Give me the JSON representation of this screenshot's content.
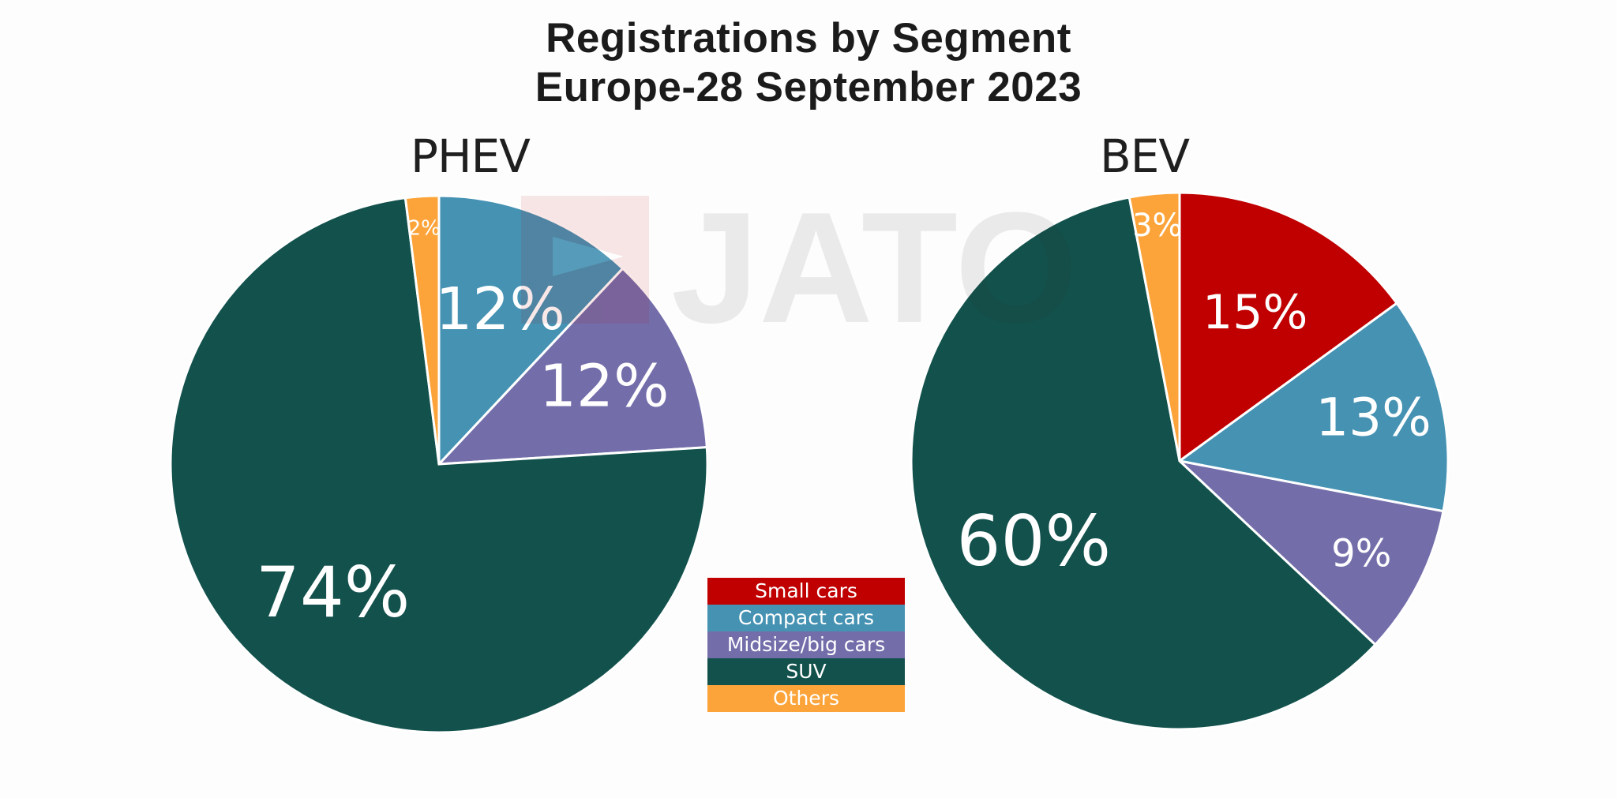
{
  "chart_data": [
    {
      "type": "pie",
      "title": "PHEV",
      "slices": [
        {
          "category": "Small cars",
          "value": 0,
          "label": ""
        },
        {
          "category": "Compact cars",
          "value": 12,
          "label": "12%"
        },
        {
          "category": "Midsize/big cars",
          "value": 12,
          "label": "12%"
        },
        {
          "category": "SUV",
          "value": 74,
          "label": "74%"
        },
        {
          "category": "Others",
          "value": 2,
          "label": "2%"
        }
      ]
    },
    {
      "type": "pie",
      "title": "BEV",
      "slices": [
        {
          "category": "Small cars",
          "value": 15,
          "label": "15%"
        },
        {
          "category": "Compact cars",
          "value": 13,
          "label": "13%"
        },
        {
          "category": "Midsize/big cars",
          "value": 9,
          "label": "9%"
        },
        {
          "category": "SUV",
          "value": 60,
          "label": "60%"
        },
        {
          "category": "Others",
          "value": 3,
          "label": "3%"
        }
      ]
    }
  ],
  "title_line1": "Registrations by Segment",
  "title_line2": "Europe-28 September 2023",
  "watermark": "JATO",
  "legend": [
    {
      "label": "Small cars",
      "color": "#c00000"
    },
    {
      "label": "Compact cars",
      "color": "#4592b3"
    },
    {
      "label": "Midsize/big cars",
      "color": "#736eaa"
    },
    {
      "label": "SUV",
      "color": "#12514c"
    },
    {
      "label": "Others",
      "color": "#fca43a"
    }
  ]
}
